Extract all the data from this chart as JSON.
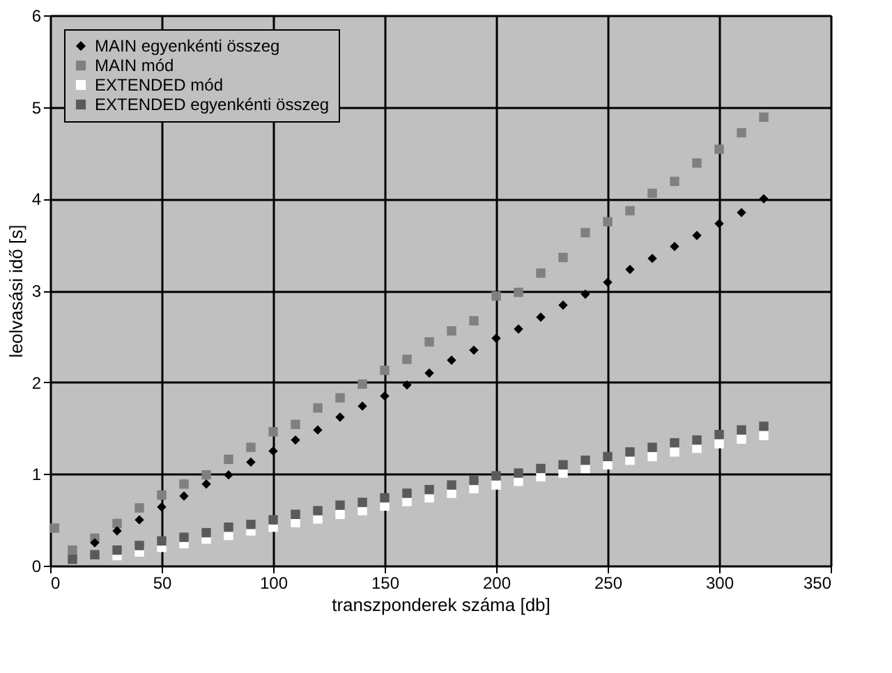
{
  "chart_data": {
    "type": "scatter",
    "xlabel": "transzponderek száma  [db]",
    "ylabel": "leolvasási idő [s]",
    "x": [
      10,
      20,
      30,
      40,
      50,
      60,
      70,
      80,
      90,
      100,
      110,
      120,
      130,
      140,
      150,
      160,
      170,
      180,
      190,
      200,
      210,
      220,
      230,
      240,
      250,
      260,
      270,
      280,
      290,
      300,
      310,
      320
    ],
    "xlim": [
      0,
      350
    ],
    "xticks": [
      0,
      50,
      100,
      150,
      200,
      250,
      300,
      350
    ],
    "ylim": [
      0,
      6
    ],
    "yticks": [
      0,
      1,
      2,
      3,
      4,
      5,
      6
    ],
    "grid": true,
    "legend": "top left",
    "series": [
      {
        "name": "MAIN egyenkénti összeg",
        "color": "#000000",
        "marker": "diamond",
        "values": [
          null,
          0.25,
          0.38,
          0.5,
          0.64,
          0.76,
          0.89,
          0.99,
          1.13,
          1.25,
          1.37,
          1.48,
          1.62,
          1.74,
          1.85,
          1.97,
          2.1,
          2.24,
          2.35,
          2.48,
          2.58,
          2.71,
          2.84,
          2.96,
          3.09,
          3.23,
          3.35,
          3.48,
          3.6,
          3.73,
          3.85,
          4.0
        ]
      },
      {
        "name": "MAIN mód",
        "color": "#808080",
        "marker": "square",
        "x": [
          2,
          10,
          20,
          30,
          40,
          50,
          60,
          70,
          80,
          90,
          100,
          110,
          120,
          130,
          140,
          150,
          160,
          170,
          180,
          190,
          200,
          210,
          220,
          230,
          240,
          250,
          260,
          270,
          280,
          290,
          300,
          310,
          320
        ],
        "values": [
          0.41,
          0.17,
          0.3,
          0.46,
          0.63,
          0.77,
          0.89,
          0.99,
          1.16,
          1.29,
          1.46,
          1.54,
          1.72,
          1.83,
          1.98,
          2.13,
          2.25,
          2.44,
          2.56,
          2.67,
          2.94,
          2.98,
          3.19,
          3.36,
          3.63,
          3.75,
          3.87,
          4.06,
          4.19,
          4.39,
          4.54,
          4.72,
          4.89
        ]
      },
      {
        "name": "EXTENDED mód",
        "color": "#ffffff",
        "marker": "square",
        "values": [
          null,
          null,
          0.11,
          0.15,
          0.2,
          0.24,
          0.29,
          0.33,
          0.38,
          0.42,
          0.47,
          0.51,
          0.56,
          0.6,
          0.65,
          0.7,
          0.74,
          0.79,
          0.84,
          0.88,
          0.92,
          0.97,
          1.01,
          1.06,
          1.1,
          1.15,
          1.19,
          1.24,
          1.28,
          1.33,
          1.38,
          1.42
        ]
      },
      {
        "name": "EXTENDED egyenkénti összeg",
        "color": "#5a5a5a",
        "marker": "square",
        "values": [
          0.07,
          0.12,
          0.17,
          0.22,
          0.27,
          0.31,
          0.36,
          0.42,
          0.45,
          0.5,
          0.56,
          0.6,
          0.66,
          0.69,
          0.74,
          0.79,
          0.83,
          0.88,
          0.93,
          0.98,
          1.01,
          1.06,
          1.1,
          1.15,
          1.19,
          1.24,
          1.29,
          1.34,
          1.37,
          1.43,
          1.48,
          1.52
        ]
      }
    ]
  }
}
